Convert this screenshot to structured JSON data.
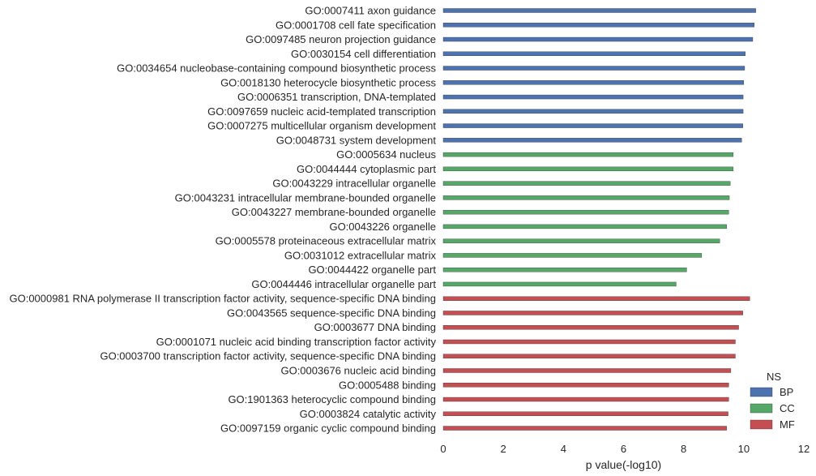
{
  "chart_data": {
    "type": "bar",
    "orientation": "horizontal",
    "xlabel": "p value(-log10)",
    "xlim": [
      0,
      12
    ],
    "xticks": [
      0,
      2,
      4,
      6,
      8,
      10,
      12
    ],
    "grid": false,
    "legend": {
      "title": "NS",
      "placement": "bottom-right",
      "entries": [
        {
          "name": "BP",
          "color": "#4c72b0"
        },
        {
          "name": "CC",
          "color": "#55a868"
        },
        {
          "name": "MF",
          "color": "#c44e52"
        }
      ]
    },
    "bars": [
      {
        "label": "GO:0007411 axon guidance",
        "ns": "BP",
        "value": 10.4
      },
      {
        "label": "GO:0001708 cell fate specification",
        "ns": "BP",
        "value": 10.35
      },
      {
        "label": "GO:0097485 neuron projection guidance",
        "ns": "BP",
        "value": 10.3
      },
      {
        "label": "GO:0030154 cell differentiation",
        "ns": "BP",
        "value": 10.05
      },
      {
        "label": "GO:0034654 nucleobase-containing compound biosynthetic process",
        "ns": "BP",
        "value": 10.03
      },
      {
        "label": "GO:0018130 heterocycle biosynthetic process",
        "ns": "BP",
        "value": 10.0
      },
      {
        "label": "GO:0006351 transcription, DNA-templated",
        "ns": "BP",
        "value": 9.98
      },
      {
        "label": "GO:0097659 nucleic acid-templated transcription",
        "ns": "BP",
        "value": 9.98
      },
      {
        "label": "GO:0007275 multicellular organism development",
        "ns": "BP",
        "value": 9.97
      },
      {
        "label": "GO:0048731 system development",
        "ns": "BP",
        "value": 9.93
      },
      {
        "label": "GO:0005634 nucleus",
        "ns": "CC",
        "value": 9.65
      },
      {
        "label": "GO:0044444 cytoplasmic part",
        "ns": "CC",
        "value": 9.65
      },
      {
        "label": "GO:0043229 intracellular organelle",
        "ns": "CC",
        "value": 9.55
      },
      {
        "label": "GO:0043231 intracellular membrane-bounded organelle",
        "ns": "CC",
        "value": 9.52
      },
      {
        "label": "GO:0043227 membrane-bounded organelle",
        "ns": "CC",
        "value": 9.5
      },
      {
        "label": "GO:0043226 organelle",
        "ns": "CC",
        "value": 9.43
      },
      {
        "label": "GO:0005578 proteinaceous extracellular matrix",
        "ns": "CC",
        "value": 9.2
      },
      {
        "label": "GO:0031012 extracellular matrix",
        "ns": "CC",
        "value": 8.6
      },
      {
        "label": "GO:0044422 organelle part",
        "ns": "CC",
        "value": 8.1
      },
      {
        "label": "GO:0044446 intracellular organelle part",
        "ns": "CC",
        "value": 7.75
      },
      {
        "label": "GO:0000981 RNA polymerase II transcription factor activity, sequence-specific DNA binding",
        "ns": "MF",
        "value": 10.2
      },
      {
        "label": "GO:0043565 sequence-specific DNA binding",
        "ns": "MF",
        "value": 9.97
      },
      {
        "label": "GO:0003677 DNA binding",
        "ns": "MF",
        "value": 9.83
      },
      {
        "label": "GO:0001071 nucleic acid binding transcription factor activity",
        "ns": "MF",
        "value": 9.72
      },
      {
        "label": "GO:0003700 transcription factor activity, sequence-specific DNA binding",
        "ns": "MF",
        "value": 9.72
      },
      {
        "label": "GO:0003676 nucleic acid binding",
        "ns": "MF",
        "value": 9.57
      },
      {
        "label": "GO:0005488 binding",
        "ns": "MF",
        "value": 9.5
      },
      {
        "label": "GO:1901363 heterocyclic compound binding",
        "ns": "MF",
        "value": 9.5
      },
      {
        "label": "GO:0003824 catalytic activity",
        "ns": "MF",
        "value": 9.48
      },
      {
        "label": "GO:0097159 organic cyclic compound binding",
        "ns": "MF",
        "value": 9.43
      }
    ]
  }
}
